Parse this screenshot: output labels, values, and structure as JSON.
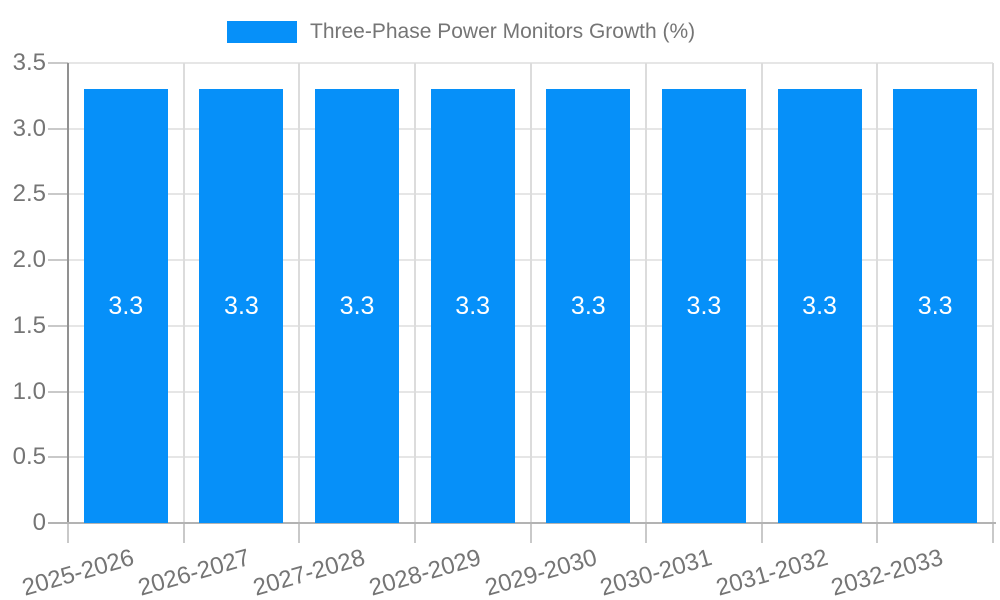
{
  "legend": {
    "label": "Three-Phase Power Monitors Growth (%)"
  },
  "chart_data": {
    "type": "bar",
    "title": "Three-Phase Power Monitors Growth (%)",
    "categories": [
      "2025-2026",
      "2026-2027",
      "2027-2028",
      "2028-2029",
      "2029-2030",
      "2030-2031",
      "2031-2032",
      "2032-2033"
    ],
    "series": [
      {
        "name": "Three-Phase Power Monitors Growth (%)",
        "values": [
          3.3,
          3.3,
          3.3,
          3.3,
          3.3,
          3.3,
          3.3,
          3.3
        ]
      }
    ],
    "value_labels": [
      "3.3",
      "3.3",
      "3.3",
      "3.3",
      "3.3",
      "3.3",
      "3.3",
      "3.3"
    ],
    "xlabel": "",
    "ylabel": "",
    "ylim": [
      0,
      3.5
    ],
    "yticks": [
      {
        "value": 0,
        "label": "0"
      },
      {
        "value": 0.5,
        "label": "0.5"
      },
      {
        "value": 1.0,
        "label": "1.0"
      },
      {
        "value": 1.5,
        "label": "1.5"
      },
      {
        "value": 2.0,
        "label": "2.0"
      },
      {
        "value": 2.5,
        "label": "2.5"
      },
      {
        "value": 3.0,
        "label": "3.0"
      },
      {
        "value": 3.5,
        "label": "3.5"
      }
    ],
    "grid": "horizontal and vertical gridlines on",
    "legend_position": "top-center",
    "colors": {
      "bar": "#0690f9",
      "axis_text": "#757575",
      "value_label": "#ffffff",
      "grid_h": "#e6e6e6",
      "grid_v": "#dcdcdc",
      "tick": "#c9c9c9",
      "axis_left": "#919191",
      "axis_bottom": "#b3b3b3"
    }
  }
}
